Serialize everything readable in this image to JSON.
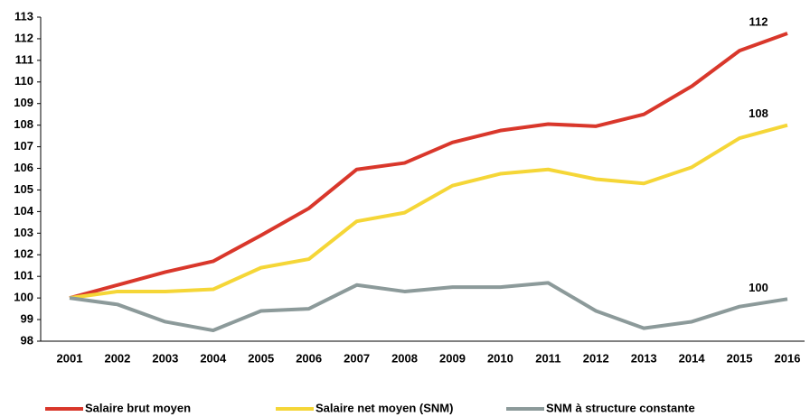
{
  "chart_data": {
    "type": "line",
    "categories": [
      "2001",
      "2002",
      "2003",
      "2004",
      "2005",
      "2006",
      "2007",
      "2008",
      "2009",
      "2010",
      "2011",
      "2012",
      "2013",
      "2014",
      "2015",
      "2016"
    ],
    "series": [
      {
        "name": "Salaire brut moyen",
        "color": "#d9372b",
        "values": [
          100,
          100.6,
          101.2,
          101.7,
          102.9,
          104.15,
          105.95,
          106.25,
          107.2,
          107.75,
          108.05,
          107.95,
          108.5,
          109.8,
          111.45,
          112.25
        ],
        "value_labels": [
          null,
          null,
          null,
          null,
          null,
          null,
          null,
          null,
          null,
          null,
          null,
          null,
          null,
          null,
          null,
          "112"
        ]
      },
      {
        "name": "Salaire net moyen (SNM)",
        "color": "#f5d637",
        "values": [
          100,
          100.3,
          100.3,
          100.4,
          101.4,
          101.8,
          103.55,
          103.95,
          105.2,
          105.75,
          105.95,
          105.5,
          105.3,
          106.05,
          107.4,
          108.0
        ],
        "value_labels": [
          null,
          null,
          null,
          null,
          null,
          null,
          null,
          null,
          null,
          null,
          null,
          null,
          null,
          null,
          null,
          "108"
        ]
      },
      {
        "name": "SNM à structure constante",
        "color": "#8c9a9a",
        "values": [
          100,
          99.7,
          98.9,
          98.5,
          99.4,
          99.5,
          100.6,
          100.3,
          100.5,
          100.5,
          100.7,
          99.4,
          98.6,
          98.9,
          99.6,
          99.95
        ],
        "value_labels": [
          null,
          null,
          null,
          null,
          null,
          null,
          null,
          null,
          null,
          null,
          null,
          null,
          null,
          null,
          null,
          "100"
        ]
      }
    ],
    "ylim": [
      98,
      113
    ],
    "yticks": [
      98,
      99,
      100,
      101,
      102,
      103,
      104,
      105,
      106,
      107,
      108,
      109,
      110,
      111,
      112,
      113
    ],
    "grid": false,
    "legend": "bottom"
  }
}
